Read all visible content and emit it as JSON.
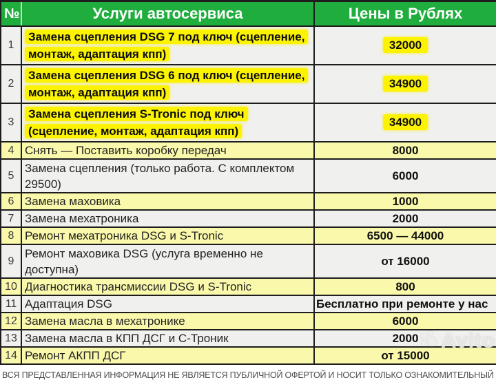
{
  "header": {
    "num": "№",
    "services": "Услуги автосервиса",
    "prices": "Цены в Рублях"
  },
  "rows": [
    {
      "num": "1",
      "service": "Замена сцепления DSG 7 под ключ (сцепление, монтаж, адаптация кпп)",
      "price": "32000",
      "style": "highlight"
    },
    {
      "num": "2",
      "service": "Замена сцепления DSG 6 под ключ (сцепление, монтаж, адаптация кпп)",
      "price": "34900",
      "style": "highlight"
    },
    {
      "num": "3",
      "service": "Замена сцепления S-Tronic под ключ (сцепление, монтаж, адаптация кпп)",
      "price": "34900",
      "style": "highlight"
    },
    {
      "num": "4",
      "service": "Снять — Поставить коробку передач",
      "price": "8000",
      "style": "yellow"
    },
    {
      "num": "5",
      "service": "Замена сцепления (только работа. С комплектом 29500)",
      "price": "6000",
      "style": "gray"
    },
    {
      "num": "6",
      "service": "Замена маховика",
      "price": "1000",
      "style": "yellow"
    },
    {
      "num": "7",
      "service": "Замена мехатроника",
      "price": "2000",
      "style": "gray"
    },
    {
      "num": "8",
      "service": "Ремонт мехатроника DSG и S-Tronic",
      "price": "6500 — 44000",
      "style": "yellow"
    },
    {
      "num": "9",
      "service": "Ремонт маховика DSG (услуга временно не доступна)",
      "price": "от 16000",
      "style": "gray"
    },
    {
      "num": "10",
      "service": "Диагностика трансмиссии DSG и S-Tronic",
      "price": "800",
      "style": "yellow"
    },
    {
      "num": "11",
      "service": "Адаптация DSG",
      "price": "Бесплатно при ремонте у нас",
      "style": "gray",
      "price_align": "left"
    },
    {
      "num": "12",
      "service": "Замена масла в мехатронике",
      "price": "6000",
      "style": "yellow"
    },
    {
      "num": "13",
      "service": "Замена масла в КПП ДСГ и С-Троник",
      "price": "2000",
      "style": "gray"
    },
    {
      "num": "14",
      "service": "Ремонт АКПП ДСГ",
      "price": "от 15000",
      "style": "yellow"
    }
  ],
  "footer": {
    "disclaimer": "ВСЯ ПРЕДСТАВЛЕННАЯ ИНФОРМАЦИЯ НЕ ЯВЛЯЕТСЯ ПУБЛИЧНОЙ ОФЕРТОЙ И НОСИТ ТОЛЬКО ОЗНАКОМИТЕЛЬНЫЙ ХАРАКТЕР"
  },
  "watermark": {
    "label": "Avito"
  },
  "colors": {
    "header_green": "#1fae3d",
    "highlight_yellow": "#fcf303",
    "row_yellow": "#f9f8ab",
    "row_gray": "#f0f0ee",
    "border_dark": "#1d1d1d"
  }
}
